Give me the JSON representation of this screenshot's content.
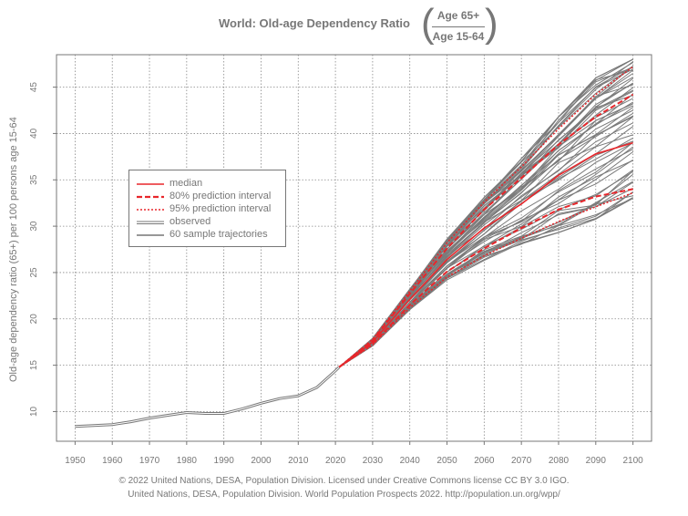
{
  "title": {
    "main": "World: Old-age Dependency Ratio",
    "numerator": "Age 65+",
    "denominator": "Age 15-64"
  },
  "footer": {
    "line1": "© 2022 United Nations, DESA, Population Division. Licensed under Creative Commons license CC BY 3.0 IGO.",
    "line2": "United Nations, DESA, Population Division. World Population Prospects 2022. http://population.un.org/wpp/"
  },
  "legend": {
    "items": [
      {
        "label": "median",
        "color": "#e8262b",
        "style": "solid"
      },
      {
        "label": "80% prediction interval",
        "color": "#e8262b",
        "style": "dashed"
      },
      {
        "label": "95% prediction interval",
        "color": "#e8262b",
        "style": "dotted"
      },
      {
        "label": "observed",
        "color": "#777777",
        "style": "double"
      },
      {
        "label": "60 sample trajectories",
        "color": "#777777",
        "style": "solid"
      }
    ]
  },
  "chart_data": {
    "type": "line",
    "ylabel": "Old-age dependency ratio (65+) per 100 persons age 15-64",
    "xlabel": "",
    "xlim": [
      1945,
      2105
    ],
    "ylim": [
      6.8,
      48.5
    ],
    "x_ticks": [
      1950,
      1960,
      1970,
      1980,
      1990,
      2000,
      2010,
      2020,
      2030,
      2040,
      2050,
      2060,
      2070,
      2080,
      2090,
      2100
    ],
    "y_ticks": [
      10,
      15,
      20,
      25,
      30,
      35,
      40,
      45
    ],
    "grid": true,
    "legend_position": "left-middle",
    "observed": {
      "x": [
        1950,
        1955,
        1960,
        1965,
        1970,
        1975,
        1980,
        1985,
        1990,
        1995,
        2000,
        2005,
        2010,
        2015,
        2020,
        2021
      ],
      "y": [
        8.4,
        8.5,
        8.6,
        8.9,
        9.3,
        9.6,
        9.9,
        9.8,
        9.8,
        10.3,
        10.9,
        11.4,
        11.7,
        12.6,
        14.4,
        14.8
      ]
    },
    "median": {
      "x": [
        2021,
        2030,
        2040,
        2050,
        2060,
        2070,
        2080,
        2090,
        2100
      ],
      "y": [
        14.8,
        17.5,
        22.1,
        26.4,
        29.8,
        32.4,
        35.5,
        37.8,
        39.0
      ]
    },
    "pi80": {
      "x": [
        2021,
        2030,
        2040,
        2050,
        2060,
        2070,
        2080,
        2090,
        2100
      ],
      "lower": [
        14.8,
        17.3,
        21.5,
        25.1,
        27.6,
        29.8,
        31.8,
        33.2,
        34.0
      ],
      "upper": [
        14.8,
        17.7,
        22.7,
        27.6,
        31.8,
        35.2,
        38.8,
        41.8,
        44.2
      ]
    },
    "pi95": {
      "x": [
        2021,
        2030,
        2040,
        2050,
        2060,
        2070,
        2080,
        2090,
        2100
      ],
      "lower": [
        14.8,
        17.2,
        21.2,
        24.5,
        26.8,
        28.7,
        30.5,
        32.1,
        33.6
      ],
      "upper": [
        14.8,
        17.8,
        23.0,
        28.2,
        32.6,
        36.4,
        40.5,
        44.2,
        47.2
      ]
    },
    "trajectories": {
      "count": 60,
      "x": [
        2021,
        2030,
        2040,
        2050,
        2060,
        2070,
        2080,
        2090,
        2100
      ],
      "y_min": [
        14.8,
        17.1,
        21.0,
        24.2,
        26.3,
        27.8,
        29.3,
        30.6,
        33.0
      ],
      "y_max": [
        14.8,
        17.9,
        23.2,
        28.6,
        33.1,
        37.3,
        41.8,
        46.0,
        48.0
      ]
    }
  }
}
